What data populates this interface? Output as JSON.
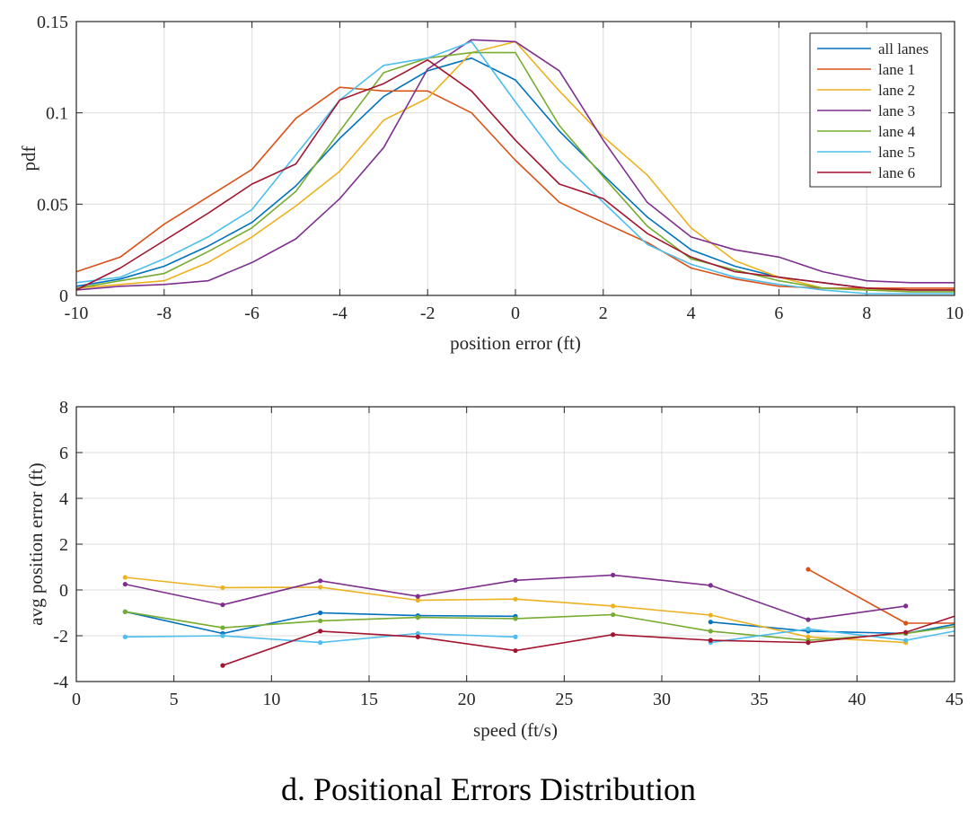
{
  "caption": "d. Positional Errors Distribution",
  "chart_data": [
    {
      "type": "line",
      "title": "",
      "xlabel": "position error (ft)",
      "ylabel": "pdf",
      "xlim": [
        -10,
        10
      ],
      "ylim": [
        0,
        0.15
      ],
      "xticks": [
        -10,
        -8,
        -6,
        -4,
        -2,
        0,
        2,
        4,
        6,
        8,
        10
      ],
      "xtick_labels": [
        "-10",
        "-8",
        "-6",
        "-4",
        "-2",
        "0",
        "2",
        "4",
        "6",
        "8",
        "10"
      ],
      "yticks": [
        0,
        0.05,
        0.1,
        0.15
      ],
      "ytick_labels": [
        "0",
        "0.05",
        "0.1",
        "0.15"
      ],
      "grid": true,
      "legend_position": "top-right",
      "x": [
        -10,
        -9,
        -8,
        -7,
        -6,
        -5,
        -4,
        -3,
        -2,
        -1,
        0,
        1,
        2,
        3,
        4,
        5,
        6,
        7,
        8,
        9,
        10
      ],
      "series": [
        {
          "name": "all lanes",
          "color": "#0072BD",
          "values": [
            0.005,
            0.009,
            0.016,
            0.027,
            0.04,
            0.06,
            0.086,
            0.109,
            0.123,
            0.13,
            0.118,
            0.09,
            0.066,
            0.043,
            0.025,
            0.016,
            0.01,
            0.007,
            0.004,
            0.003,
            0.003
          ]
        },
        {
          "name": "lane 1",
          "color": "#D95319",
          "values": [
            0.013,
            0.021,
            0.039,
            0.054,
            0.069,
            0.097,
            0.114,
            0.112,
            0.112,
            0.1,
            0.074,
            0.051,
            0.04,
            0.029,
            0.015,
            0.009,
            0.005,
            0.004,
            0.004,
            0.004,
            0.004
          ]
        },
        {
          "name": "lane 2",
          "color": "#EDB120",
          "values": [
            0.004,
            0.006,
            0.008,
            0.018,
            0.032,
            0.049,
            0.068,
            0.096,
            0.108,
            0.133,
            0.139,
            0.112,
            0.087,
            0.066,
            0.037,
            0.019,
            0.01,
            0.004,
            0.003,
            0.003,
            0.003
          ]
        },
        {
          "name": "lane 3",
          "color": "#7E2F8E",
          "values": [
            0.003,
            0.005,
            0.006,
            0.008,
            0.018,
            0.031,
            0.053,
            0.081,
            0.124,
            0.14,
            0.139,
            0.123,
            0.085,
            0.051,
            0.032,
            0.025,
            0.021,
            0.013,
            0.008,
            0.007,
            0.007
          ]
        },
        {
          "name": "lane 4",
          "color": "#77AC30",
          "values": [
            0.004,
            0.008,
            0.012,
            0.024,
            0.037,
            0.057,
            0.09,
            0.122,
            0.13,
            0.133,
            0.133,
            0.093,
            0.065,
            0.038,
            0.02,
            0.014,
            0.008,
            0.004,
            0.003,
            0.002,
            0.002
          ]
        },
        {
          "name": "lane 5",
          "color": "#4DBEEE",
          "values": [
            0.007,
            0.01,
            0.02,
            0.032,
            0.047,
            0.077,
            0.107,
            0.126,
            0.13,
            0.139,
            0.106,
            0.074,
            0.051,
            0.028,
            0.017,
            0.01,
            0.006,
            0.003,
            0.001,
            0.001,
            0.001
          ]
        },
        {
          "name": "lane 6",
          "color": "#A2142F",
          "values": [
            0.003,
            0.015,
            0.03,
            0.045,
            0.061,
            0.072,
            0.107,
            0.116,
            0.129,
            0.112,
            0.085,
            0.061,
            0.053,
            0.034,
            0.021,
            0.013,
            0.01,
            0.007,
            0.004,
            0.003,
            0.003
          ]
        }
      ]
    },
    {
      "type": "line",
      "title": "",
      "xlabel": "speed (ft/s)",
      "ylabel": "avg position error (ft)",
      "xlim": [
        0,
        45
      ],
      "ylim": [
        -4,
        8
      ],
      "xticks": [
        0,
        5,
        10,
        15,
        20,
        25,
        30,
        35,
        40,
        45
      ],
      "xtick_labels": [
        "0",
        "5",
        "10",
        "15",
        "20",
        "25",
        "30",
        "35",
        "40",
        "45"
      ],
      "yticks": [
        -4,
        -2,
        0,
        2,
        4,
        6,
        8
      ],
      "ytick_labels": [
        "-4",
        "-2",
        "0",
        "2",
        "4",
        "6",
        "8"
      ],
      "grid": true,
      "markers": true,
      "series": [
        {
          "color": "#0072BD",
          "points": [
            [
              2.5,
              -0.95
            ],
            [
              7.5,
              -1.9
            ],
            [
              12.5,
              -1.0
            ],
            [
              17.5,
              -1.12
            ],
            [
              22.5,
              -1.15
            ],
            null,
            [
              32.5,
              -1.4
            ],
            [
              37.5,
              -1.8
            ],
            [
              42.5,
              -1.9
            ],
            [
              45,
              -1.5
            ]
          ]
        },
        {
          "color": "#D95319",
          "points": [
            [
              37.5,
              0.9
            ],
            [
              42.5,
              -1.45
            ],
            [
              45,
              -1.45
            ]
          ]
        },
        {
          "color": "#EDB120",
          "points": [
            [
              2.5,
              0.55
            ],
            [
              7.5,
              0.1
            ],
            [
              12.5,
              0.12
            ],
            [
              17.5,
              -0.45
            ],
            [
              22.5,
              -0.4
            ],
            [
              27.5,
              -0.7
            ],
            [
              32.5,
              -1.1
            ],
            [
              37.5,
              -2.05
            ],
            [
              42.5,
              -2.3
            ]
          ]
        },
        {
          "color": "#7E2F8E",
          "points": [
            [
              2.5,
              0.25
            ],
            [
              7.5,
              -0.65
            ],
            [
              12.5,
              0.4
            ],
            [
              17.5,
              -0.28
            ],
            [
              22.5,
              0.42
            ],
            [
              27.5,
              0.65
            ],
            [
              32.5,
              0.2
            ],
            [
              37.5,
              -1.3
            ],
            [
              42.5,
              -0.7
            ]
          ]
        },
        {
          "color": "#77AC30",
          "points": [
            [
              2.5,
              -0.95
            ],
            [
              7.5,
              -1.65
            ],
            [
              12.5,
              -1.35
            ],
            [
              17.5,
              -1.2
            ],
            [
              22.5,
              -1.25
            ],
            [
              27.5,
              -1.08
            ],
            [
              32.5,
              -1.8
            ],
            [
              37.5,
              -2.2
            ],
            [
              42.5,
              -1.9
            ],
            [
              45,
              -1.6
            ]
          ]
        },
        {
          "color": "#4DBEEE",
          "points": [
            [
              2.5,
              -2.05
            ],
            [
              7.5,
              -2.0
            ],
            [
              12.5,
              -2.3
            ],
            [
              17.5,
              -1.9
            ],
            [
              22.5,
              -2.05
            ],
            null,
            [
              32.5,
              -2.3
            ],
            [
              37.5,
              -1.7
            ],
            [
              42.5,
              -2.2
            ],
            [
              45,
              -1.8
            ]
          ]
        },
        {
          "color": "#A2142F",
          "points": [
            [
              7.5,
              -3.3
            ],
            [
              12.5,
              -1.8
            ],
            [
              17.5,
              -2.05
            ],
            [
              22.5,
              -2.65
            ],
            [
              27.5,
              -1.95
            ],
            [
              32.5,
              -2.2
            ],
            [
              37.5,
              -2.3
            ],
            [
              42.5,
              -1.85
            ],
            [
              45,
              -1.15
            ]
          ]
        }
      ]
    }
  ]
}
